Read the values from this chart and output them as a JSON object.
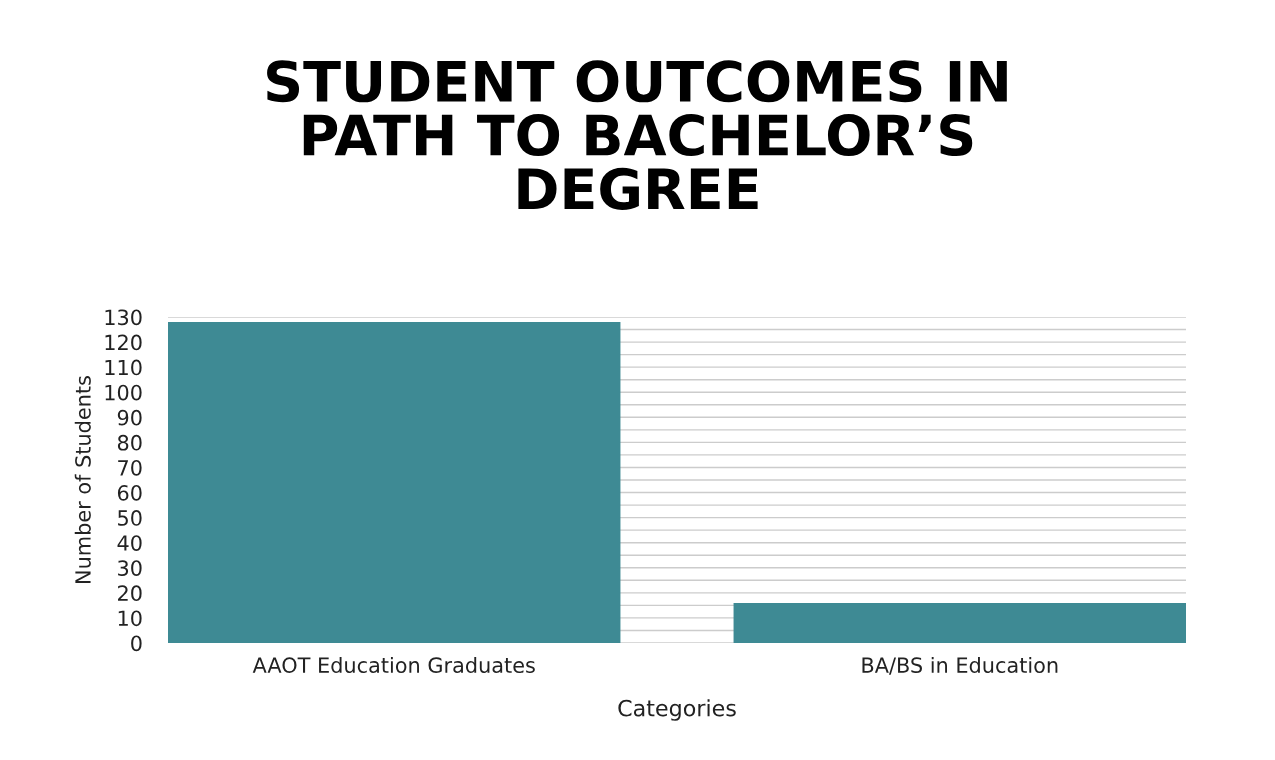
{
  "chart_data": {
    "type": "bar",
    "title": "STUDENT OUTCOMES IN\nPATH TO BACHELOR’S\nDEGREE",
    "xlabel": "Categories",
    "ylabel": "Number of Students",
    "categories": [
      "AAOT Education Graduates",
      "BA/BS in Education"
    ],
    "values": [
      128,
      16
    ],
    "color": "#3e8a94",
    "ylim": [
      0,
      130
    ],
    "yticks": [
      0,
      {
        "value": 5,
        "label": null
      },
      10,
      {
        "value": 15,
        "label": null
      },
      20,
      {
        "value": 25,
        "label": null
      },
      30,
      {
        "value": 35,
        "label": null
      },
      40,
      {
        "value": 45,
        "label": null
      },
      50,
      {
        "value": 55,
        "label": null
      },
      60,
      {
        "value": 65,
        "label": null
      },
      70,
      {
        "value": 75,
        "label": null
      },
      80,
      {
        "value": 85,
        "label": null
      },
      90,
      {
        "value": 95,
        "label": null
      },
      100,
      {
        "value": 105,
        "label": null
      },
      110,
      {
        "value": 115,
        "label": null
      },
      120,
      {
        "value": 125,
        "label": null
      },
      130
    ],
    "grid": "y"
  }
}
